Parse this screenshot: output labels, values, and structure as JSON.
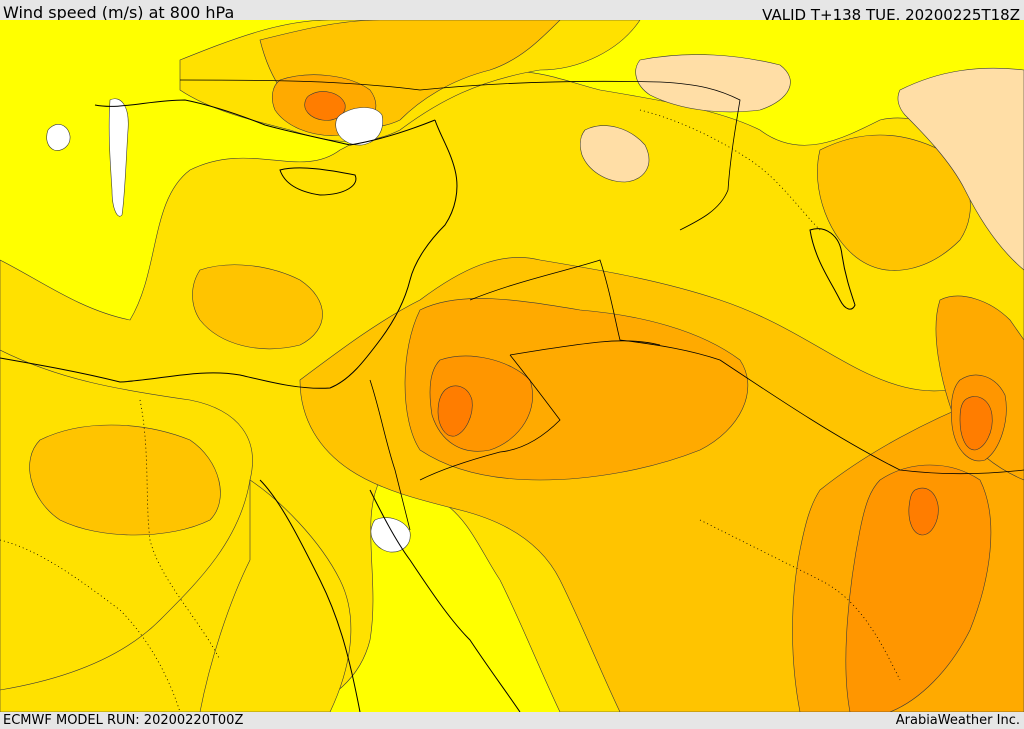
{
  "header": {
    "title": "Wind speed (m/s) at 800 hPa",
    "valid_time": "VALID T+138 TUE. 20200225T18Z"
  },
  "footer": {
    "model_run": "ECMWF MODEL RUN: 20200220T00Z",
    "credit": "ArabiaWeather Inc."
  },
  "map": {
    "field": "wind speed",
    "level": "800 hPa",
    "colors": {
      "low_yellow": "#ffff00",
      "gold": "#ffe100",
      "amber": "#ffc400",
      "light_orange": "#ffaa00",
      "orange": "#ff9600",
      "dark_orange": "#ff7d00",
      "pale_peach": "#ffdea6",
      "no_data_white": "#ffffff",
      "coastline": "#000000",
      "contour": "#3a3a3a"
    }
  }
}
